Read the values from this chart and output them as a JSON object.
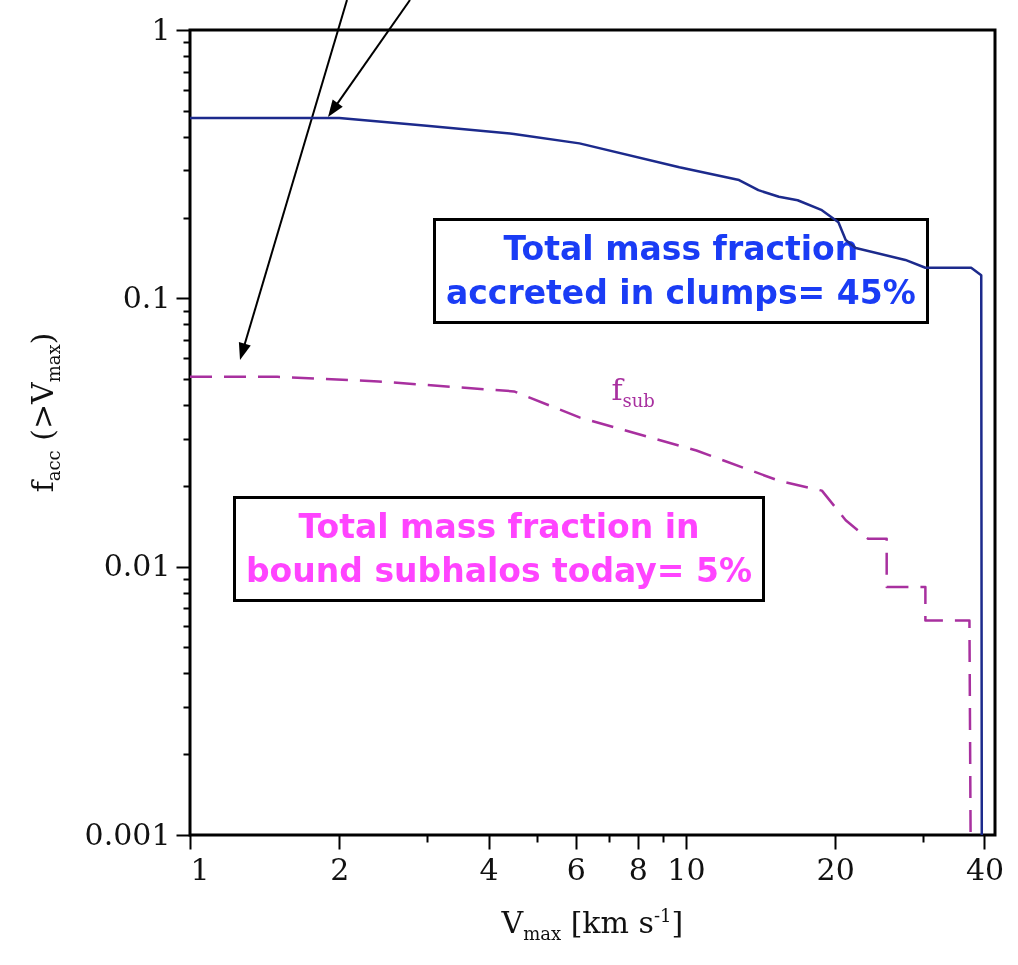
{
  "chart_data": {
    "type": "line",
    "xlabel": "V$_{max}$ [km s$^{-1}$]",
    "ylabel": "f$_{acc}$ (>V$_{max}$)",
    "log": "xy",
    "grid": false,
    "xlim": [
      1,
      42
    ],
    "xticks": [
      1,
      2,
      {
        "value": 3,
        "label": null
      },
      4,
      {
        "value": 5,
        "label": null
      },
      6,
      {
        "value": 7,
        "label": null
      },
      8,
      {
        "value": 9,
        "label": null
      },
      10,
      20,
      {
        "value": 30,
        "label": null
      },
      40
    ],
    "ylim": [
      0.001,
      1
    ],
    "yticks": [
      0.001,
      {
        "value": 0.002,
        "label": null
      },
      {
        "value": 0.003,
        "label": null
      },
      {
        "value": 0.004,
        "label": null
      },
      {
        "value": 0.005,
        "label": null
      },
      {
        "value": 0.006,
        "label": null
      },
      {
        "value": 0.007,
        "label": null
      },
      {
        "value": 0.008,
        "label": null
      },
      {
        "value": 0.009,
        "label": null
      },
      0.01,
      {
        "value": 0.02,
        "label": null
      },
      {
        "value": 0.03,
        "label": null
      },
      {
        "value": 0.04,
        "label": null
      },
      {
        "value": 0.05,
        "label": null
      },
      {
        "value": 0.06,
        "label": null
      },
      {
        "value": 0.07,
        "label": null
      },
      {
        "value": 0.08,
        "label": null
      },
      {
        "value": 0.09,
        "label": null
      },
      0.1,
      {
        "value": 0.2,
        "label": null
      },
      {
        "value": 0.3,
        "label": null
      },
      {
        "value": 0.4,
        "label": null
      },
      {
        "value": 0.5,
        "label": null
      },
      {
        "value": 0.6,
        "label": null
      },
      {
        "value": 0.7,
        "label": null
      },
      {
        "value": 0.8,
        "label": null
      },
      {
        "value": 0.9,
        "label": null
      },
      1
    ],
    "series": [
      {
        "color": "#1c2a8c",
        "line_style": "solid",
        "x": [
          1,
          2,
          3,
          4.5,
          6.1,
          9.7,
          12.8,
          14,
          15.4,
          16.8,
          18.8,
          20.3,
          21,
          22,
          27.7,
          30.4,
          37.6,
          39.4,
          39.5
        ],
        "values": [
          0.47,
          0.47,
          0.44,
          0.41,
          0.378,
          0.308,
          0.276,
          0.253,
          0.239,
          0.232,
          0.213,
          0.192,
          0.165,
          0.154,
          0.139,
          0.13,
          0.13,
          0.122,
          0.001
        ]
      },
      {
        "name": "f$_{sub}$",
        "color": "#a8309f",
        "line_style": "dashed",
        "x": [
          1,
          1.5,
          2.4,
          4.5,
          6.1,
          10.5,
          15.4,
          18.8,
          21,
          23.3,
          25.4,
          25.4,
          29.8,
          30.4,
          30.4,
          37.3,
          37.5
        ],
        "values": [
          0.051,
          0.051,
          0.049,
          0.045,
          0.036,
          0.0271,
          0.0209,
          0.0192,
          0.0149,
          0.0127,
          0.0127,
          0.0084,
          0.0084,
          0.0084,
          0.0063,
          0.0063,
          0.001
        ]
      }
    ],
    "annotations": [
      "Total mass fraction\naccreted in clumps= 45%",
      "Total mass fraction in\nbound subhalos today= 5%"
    ]
  }
}
